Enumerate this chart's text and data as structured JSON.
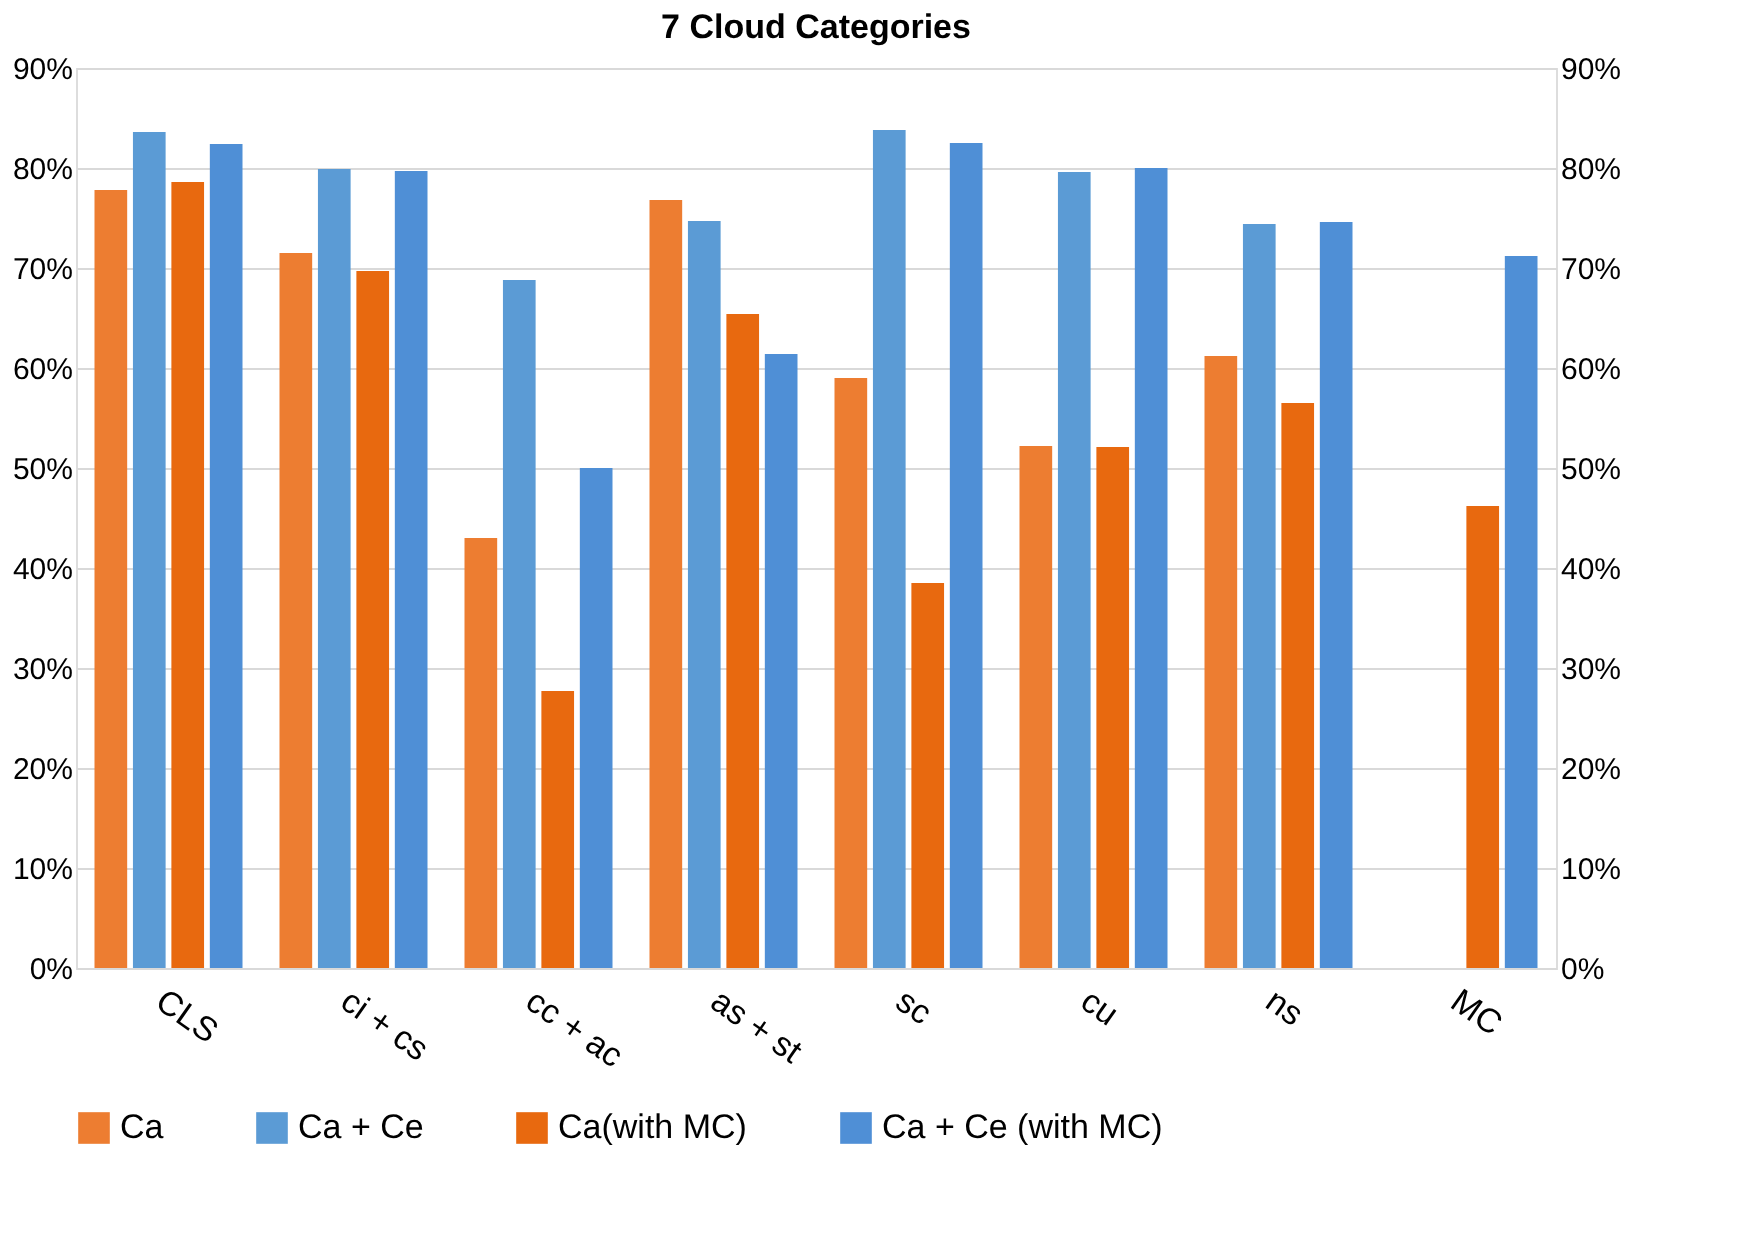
{
  "chart_data": {
    "type": "bar",
    "title": "7 Cloud Categories",
    "categories": [
      "CLS",
      "ci + cs",
      "cc + ac",
      "as + st",
      "sc",
      "cu",
      "ns",
      "MC"
    ],
    "series": [
      {
        "name": "Ca",
        "color": "#ed7d31",
        "values": [
          77.8,
          71.5,
          43,
          76.8,
          59,
          52.2,
          61.2,
          null
        ]
      },
      {
        "name": "Ca + Ce",
        "color": "#5b9bd5",
        "values": [
          83.6,
          79.9,
          68.8,
          74.7,
          83.8,
          79.6,
          74.4,
          null
        ]
      },
      {
        "name": "Ca(with MC)",
        "color": "#e8690f",
        "values": [
          78.6,
          69.7,
          27.7,
          65.4,
          38.5,
          52.1,
          56.5,
          46.2
        ]
      },
      {
        "name": "Ca + Ce (with MC)",
        "color": "#4f8fd6",
        "values": [
          82.4,
          79.7,
          50,
          61.4,
          82.5,
          80,
          74.6,
          71.2
        ]
      }
    ],
    "ylim": [
      0,
      90
    ],
    "yticks": [
      {
        "value": 0,
        "label": "0%"
      },
      {
        "value": 10,
        "label": "10%"
      },
      {
        "value": 20,
        "label": "20%"
      },
      {
        "value": 30,
        "label": "30%"
      },
      {
        "value": 40,
        "label": "40%"
      },
      {
        "value": 50,
        "label": "50%"
      },
      {
        "value": 60,
        "label": "60%"
      },
      {
        "value": 70,
        "label": "70%"
      },
      {
        "value": 80,
        "label": "80%"
      },
      {
        "value": 90,
        "label": "90%"
      }
    ],
    "y2lim": [
      0,
      90
    ],
    "y2ticks": [
      {
        "value": 0,
        "label": "0%"
      },
      {
        "value": 10,
        "label": "10%"
      },
      {
        "value": 20,
        "label": "20%"
      },
      {
        "value": 30,
        "label": "30%"
      },
      {
        "value": 40,
        "label": "40%"
      },
      {
        "value": 50,
        "label": "50%"
      },
      {
        "value": 60,
        "label": "60%"
      },
      {
        "value": 70,
        "label": "70%"
      },
      {
        "value": 80,
        "label": "80%"
      },
      {
        "value": 90,
        "label": "90%"
      }
    ],
    "grid": "y",
    "legend": "bottom"
  }
}
